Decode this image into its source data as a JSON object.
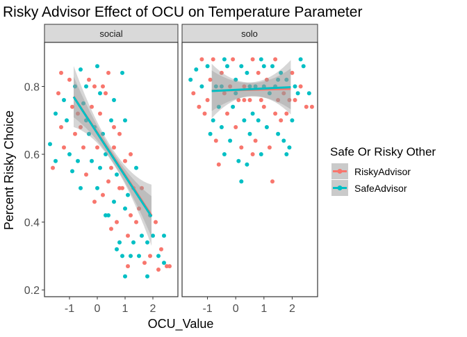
{
  "chart_data": {
    "type": "scatter",
    "title": "Risky Advisor Effect of OCU on Temperature Parameter",
    "xlabel": "OCU_Value",
    "ylabel": "Percent Risky Choice",
    "facets": [
      "social",
      "solo"
    ],
    "xlim": [
      -1.9,
      2.9
    ],
    "ylim": [
      0.18,
      0.93
    ],
    "x_ticks": [
      -1,
      0,
      1,
      2
    ],
    "x_tick_labels": [
      "-1",
      "0",
      "1",
      "2"
    ],
    "y_ticks": [
      0.2,
      0.4,
      0.6,
      0.8
    ],
    "y_tick_labels": [
      "0.2",
      "0.4",
      "0.6",
      "0.8"
    ],
    "grid": false,
    "legend": {
      "title": "Safe Or Risky Other",
      "position": "right",
      "entries": [
        "RiskyAdvisor",
        "SafeAdvisor"
      ]
    },
    "colors": {
      "RiskyAdvisor": "#F8766D",
      "SafeAdvisor": "#00BFC4",
      "ribbon": "#999999"
    },
    "series": [
      {
        "name": "RiskyAdvisor",
        "color": "#F8766D"
      },
      {
        "name": "SafeAdvisor",
        "color": "#00BFC4"
      }
    ],
    "trend_lines": {
      "social": {
        "x_range": [
          -0.85,
          1.95
        ],
        "RiskyAdvisor": {
          "intercept": 0.664,
          "slope": -0.125,
          "ci_end": 0.09,
          "ci_mid": 0.02
        },
        "SafeAdvisor": {
          "intercept": 0.662,
          "slope": -0.126,
          "ci_end": 0.06,
          "ci_mid": 0.015
        }
      },
      "solo": {
        "x_range": [
          -0.85,
          1.95
        ],
        "RiskyAdvisor": {
          "intercept": 0.789,
          "slope": 0.002,
          "ci_end": 0.06,
          "ci_mid": 0.02
        },
        "SafeAdvisor": {
          "intercept": 0.79,
          "slope": 0.004,
          "ci_end": 0.08,
          "ci_mid": 0.02
        }
      }
    },
    "points": {
      "social": [
        [
          -1.7,
          0.63,
          "SafeAdvisor"
        ],
        [
          -1.6,
          0.56,
          "RiskyAdvisor"
        ],
        [
          -1.5,
          0.58,
          "SafeAdvisor"
        ],
        [
          -1.4,
          0.78,
          "RiskyAdvisor"
        ],
        [
          -1.3,
          0.84,
          "RiskyAdvisor"
        ],
        [
          -1.2,
          0.76,
          "SafeAdvisor"
        ],
        [
          -1.2,
          0.62,
          "RiskyAdvisor"
        ],
        [
          -1.1,
          0.7,
          "SafeAdvisor"
        ],
        [
          -1.0,
          0.82,
          "RiskyAdvisor"
        ],
        [
          -1.0,
          0.6,
          "SafeAdvisor"
        ],
        [
          -0.9,
          0.74,
          "RiskyAdvisor"
        ],
        [
          -0.9,
          0.55,
          "SafeAdvisor"
        ],
        [
          -0.8,
          0.8,
          "SafeAdvisor"
        ],
        [
          -0.8,
          0.66,
          "RiskyAdvisor"
        ],
        [
          -0.7,
          0.72,
          "RiskyAdvisor"
        ],
        [
          -0.7,
          0.58,
          "SafeAdvisor"
        ],
        [
          -0.6,
          0.85,
          "SafeAdvisor"
        ],
        [
          -0.6,
          0.68,
          "RiskyAdvisor"
        ],
        [
          -0.5,
          0.75,
          "SafeAdvisor"
        ],
        [
          -0.5,
          0.62,
          "RiskyAdvisor"
        ],
        [
          -0.4,
          0.7,
          "SafeAdvisor"
        ],
        [
          -0.4,
          0.54,
          "RiskyAdvisor"
        ],
        [
          -0.3,
          0.82,
          "RiskyAdvisor"
        ],
        [
          -0.3,
          0.66,
          "SafeAdvisor"
        ],
        [
          -0.2,
          0.74,
          "RiskyAdvisor"
        ],
        [
          -0.2,
          0.58,
          "SafeAdvisor"
        ],
        [
          -0.1,
          0.68,
          "SafeAdvisor"
        ],
        [
          -0.1,
          0.8,
          "RiskyAdvisor"
        ],
        [
          0.0,
          0.86,
          "SafeAdvisor"
        ],
        [
          0.0,
          0.62,
          "RiskyAdvisor"
        ],
        [
          0.0,
          0.5,
          "SafeAdvisor"
        ],
        [
          0.1,
          0.72,
          "RiskyAdvisor"
        ],
        [
          0.1,
          0.56,
          "SafeAdvisor"
        ],
        [
          0.2,
          0.66,
          "SafeAdvisor"
        ],
        [
          0.2,
          0.48,
          "RiskyAdvisor"
        ],
        [
          0.3,
          0.78,
          "RiskyAdvisor"
        ],
        [
          0.3,
          0.6,
          "SafeAdvisor"
        ],
        [
          0.4,
          0.52,
          "RiskyAdvisor"
        ],
        [
          0.4,
          0.42,
          "SafeAdvisor"
        ],
        [
          0.5,
          0.7,
          "SafeAdvisor"
        ],
        [
          0.5,
          0.56,
          "RiskyAdvisor"
        ],
        [
          0.6,
          0.46,
          "SafeAdvisor"
        ],
        [
          0.6,
          0.62,
          "RiskyAdvisor"
        ],
        [
          0.7,
          0.4,
          "RiskyAdvisor"
        ],
        [
          0.7,
          0.54,
          "SafeAdvisor"
        ],
        [
          0.8,
          0.66,
          "RiskyAdvisor"
        ],
        [
          0.8,
          0.34,
          "SafeAdvisor"
        ],
        [
          0.9,
          0.5,
          "RiskyAdvisor"
        ],
        [
          0.9,
          0.3,
          "SafeAdvisor"
        ],
        [
          1.0,
          0.44,
          "SafeAdvisor"
        ],
        [
          1.0,
          0.24,
          "SafeAdvisor"
        ],
        [
          1.0,
          0.58,
          "RiskyAdvisor"
        ],
        [
          1.1,
          0.36,
          "RiskyAdvisor"
        ],
        [
          1.1,
          0.48,
          "SafeAdvisor"
        ],
        [
          1.2,
          0.42,
          "RiskyAdvisor"
        ],
        [
          1.2,
          0.3,
          "SafeAdvisor"
        ],
        [
          1.3,
          0.5,
          "RiskyAdvisor"
        ],
        [
          1.3,
          0.34,
          "SafeAdvisor"
        ],
        [
          1.4,
          0.4,
          "RiskyAdvisor"
        ],
        [
          1.5,
          0.3,
          "SafeAdvisor"
        ],
        [
          1.5,
          0.44,
          "RiskyAdvisor"
        ],
        [
          1.6,
          0.36,
          "SafeAdvisor"
        ],
        [
          1.7,
          0.28,
          "RiskyAdvisor"
        ],
        [
          1.8,
          0.34,
          "SafeAdvisor"
        ],
        [
          1.9,
          0.3,
          "RiskyAdvisor"
        ],
        [
          2.0,
          0.36,
          "SafeAdvisor"
        ],
        [
          2.1,
          0.4,
          "RiskyAdvisor"
        ],
        [
          2.2,
          0.3,
          "SafeAdvisor"
        ],
        [
          2.3,
          0.32,
          "RiskyAdvisor"
        ],
        [
          2.4,
          0.28,
          "SafeAdvisor"
        ],
        [
          2.5,
          0.27,
          "RiskyAdvisor"
        ],
        [
          2.6,
          0.27,
          "RiskyAdvisor"
        ],
        [
          2.4,
          0.36,
          "SafeAdvisor"
        ],
        [
          0.2,
          0.8,
          "RiskyAdvisor"
        ],
        [
          0.4,
          0.84,
          "RiskyAdvisor"
        ],
        [
          0.6,
          0.76,
          "SafeAdvisor"
        ],
        [
          0.9,
          0.84,
          "SafeAdvisor"
        ],
        [
          1.0,
          0.7,
          "SafeAdvisor"
        ],
        [
          1.2,
          0.6,
          "RiskyAdvisor"
        ],
        [
          1.4,
          0.56,
          "SafeAdvisor"
        ],
        [
          1.6,
          0.5,
          "RiskyAdvisor"
        ],
        [
          0.8,
          0.5,
          "RiskyAdvisor"
        ],
        [
          0.3,
          0.42,
          "SafeAdvisor"
        ],
        [
          -0.1,
          0.46,
          "RiskyAdvisor"
        ],
        [
          0.5,
          0.38,
          "RiskyAdvisor"
        ],
        [
          0.7,
          0.32,
          "SafeAdvisor"
        ],
        [
          1.1,
          0.27,
          "RiskyAdvisor"
        ],
        [
          -0.6,
          0.5,
          "SafeAdvisor"
        ],
        [
          -1.3,
          0.68,
          "RiskyAdvisor"
        ],
        [
          -1.5,
          0.72,
          "SafeAdvisor"
        ],
        [
          1.8,
          0.24,
          "SafeAdvisor"
        ],
        [
          2.2,
          0.26,
          "RiskyAdvisor"
        ],
        [
          1.9,
          0.42,
          "SafeAdvisor"
        ],
        [
          0.1,
          0.78,
          "SafeAdvisor"
        ],
        [
          -0.4,
          0.8,
          "SafeAdvisor"
        ],
        [
          0.6,
          0.68,
          "RiskyAdvisor"
        ]
      ],
      "solo": [
        [
          -1.6,
          0.82,
          "SafeAdvisor"
        ],
        [
          -1.5,
          0.78,
          "RiskyAdvisor"
        ],
        [
          -1.4,
          0.85,
          "SafeAdvisor"
        ],
        [
          -1.3,
          0.74,
          "RiskyAdvisor"
        ],
        [
          -1.2,
          0.8,
          "SafeAdvisor"
        ],
        [
          -1.1,
          0.72,
          "RiskyAdvisor"
        ],
        [
          -1.0,
          0.86,
          "SafeAdvisor"
        ],
        [
          -1.0,
          0.76,
          "RiskyAdvisor"
        ],
        [
          -0.9,
          0.82,
          "RiskyAdvisor"
        ],
        [
          -0.8,
          0.7,
          "SafeAdvisor"
        ],
        [
          -0.8,
          0.88,
          "RiskyAdvisor"
        ],
        [
          -0.7,
          0.64,
          "RiskyAdvisor"
        ],
        [
          -0.7,
          0.8,
          "SafeAdvisor"
        ],
        [
          -0.6,
          0.57,
          "RiskyAdvisor"
        ],
        [
          -0.6,
          0.74,
          "SafeAdvisor"
        ],
        [
          -0.5,
          0.84,
          "RiskyAdvisor"
        ],
        [
          -0.5,
          0.68,
          "SafeAdvisor"
        ],
        [
          -0.4,
          0.78,
          "RiskyAdvisor"
        ],
        [
          -0.4,
          0.6,
          "SafeAdvisor"
        ],
        [
          -0.3,
          0.86,
          "SafeAdvisor"
        ],
        [
          -0.3,
          0.72,
          "RiskyAdvisor"
        ],
        [
          -0.2,
          0.8,
          "RiskyAdvisor"
        ],
        [
          -0.2,
          0.64,
          "SafeAdvisor"
        ],
        [
          -0.1,
          0.88,
          "RiskyAdvisor"
        ],
        [
          -0.1,
          0.74,
          "SafeAdvisor"
        ],
        [
          0.0,
          0.82,
          "SafeAdvisor"
        ],
        [
          0.0,
          0.68,
          "RiskyAdvisor"
        ],
        [
          0.1,
          0.58,
          "SafeAdvisor"
        ],
        [
          0.1,
          0.76,
          "RiskyAdvisor"
        ],
        [
          0.2,
          0.86,
          "SafeAdvisor"
        ],
        [
          0.2,
          0.62,
          "RiskyAdvisor"
        ],
        [
          0.3,
          0.8,
          "RiskyAdvisor"
        ],
        [
          0.3,
          0.7,
          "SafeAdvisor"
        ],
        [
          0.4,
          0.84,
          "SafeAdvisor"
        ],
        [
          0.4,
          0.57,
          "SafeAdvisor"
        ],
        [
          0.5,
          0.76,
          "RiskyAdvisor"
        ],
        [
          0.5,
          0.66,
          "SafeAdvisor"
        ],
        [
          0.6,
          0.88,
          "RiskyAdvisor"
        ],
        [
          0.6,
          0.72,
          "SafeAdvisor"
        ],
        [
          0.7,
          0.8,
          "SafeAdvisor"
        ],
        [
          0.7,
          0.64,
          "RiskyAdvisor"
        ],
        [
          0.8,
          0.84,
          "RiskyAdvisor"
        ],
        [
          0.8,
          0.7,
          "SafeAdvisor"
        ],
        [
          0.9,
          0.76,
          "RiskyAdvisor"
        ],
        [
          0.9,
          0.6,
          "SafeAdvisor"
        ],
        [
          1.0,
          0.86,
          "SafeAdvisor"
        ],
        [
          1.0,
          0.74,
          "RiskyAdvisor"
        ],
        [
          1.1,
          0.68,
          "SafeAdvisor"
        ],
        [
          1.1,
          0.82,
          "RiskyAdvisor"
        ],
        [
          1.2,
          0.78,
          "SafeAdvisor"
        ],
        [
          1.2,
          0.62,
          "RiskyAdvisor"
        ],
        [
          1.3,
          0.52,
          "RiskyAdvisor"
        ],
        [
          1.3,
          0.86,
          "SafeAdvisor"
        ],
        [
          1.4,
          0.72,
          "RiskyAdvisor"
        ],
        [
          1.4,
          0.8,
          "SafeAdvisor"
        ],
        [
          1.5,
          0.76,
          "RiskyAdvisor"
        ],
        [
          1.5,
          0.66,
          "SafeAdvisor"
        ],
        [
          1.6,
          0.84,
          "SafeAdvisor"
        ],
        [
          1.6,
          0.7,
          "RiskyAdvisor"
        ],
        [
          1.7,
          0.78,
          "RiskyAdvisor"
        ],
        [
          1.7,
          0.64,
          "SafeAdvisor"
        ],
        [
          1.8,
          0.82,
          "SafeAdvisor"
        ],
        [
          1.8,
          0.72,
          "RiskyAdvisor"
        ],
        [
          1.9,
          0.76,
          "RiskyAdvisor"
        ],
        [
          1.9,
          0.62,
          "SafeAdvisor"
        ],
        [
          2.0,
          0.84,
          "RiskyAdvisor"
        ],
        [
          2.0,
          0.7,
          "SafeAdvisor"
        ],
        [
          2.1,
          0.8,
          "SafeAdvisor"
        ],
        [
          2.1,
          0.76,
          "RiskyAdvisor"
        ],
        [
          2.2,
          0.78,
          "SafeAdvisor"
        ],
        [
          2.3,
          0.8,
          "RiskyAdvisor"
        ],
        [
          2.4,
          0.86,
          "SafeAdvisor"
        ],
        [
          2.5,
          0.74,
          "RiskyAdvisor"
        ],
        [
          2.6,
          0.78,
          "SafeAdvisor"
        ],
        [
          2.7,
          0.74,
          "RiskyAdvisor"
        ],
        [
          -0.9,
          0.66,
          "SafeAdvisor"
        ],
        [
          0.6,
          0.6,
          "RiskyAdvisor"
        ],
        [
          1.8,
          0.6,
          "SafeAdvisor"
        ],
        [
          0.2,
          0.52,
          "SafeAdvisor"
        ],
        [
          -0.4,
          0.88,
          "SafeAdvisor"
        ],
        [
          0.9,
          0.88,
          "SafeAdvisor"
        ],
        [
          1.4,
          0.88,
          "RiskyAdvisor"
        ],
        [
          -1.2,
          0.88,
          "RiskyAdvisor"
        ],
        [
          2.3,
          0.88,
          "SafeAdvisor"
        ],
        [
          0.0,
          0.78,
          "SafeAdvisor"
        ],
        [
          0.5,
          0.8,
          "SafeAdvisor"
        ],
        [
          1.0,
          0.8,
          "SafeAdvisor"
        ],
        [
          1.5,
          0.82,
          "SafeAdvisor"
        ],
        [
          -0.5,
          0.8,
          "SafeAdvisor"
        ],
        [
          0.3,
          0.76,
          "RiskyAdvisor"
        ]
      ]
    }
  }
}
